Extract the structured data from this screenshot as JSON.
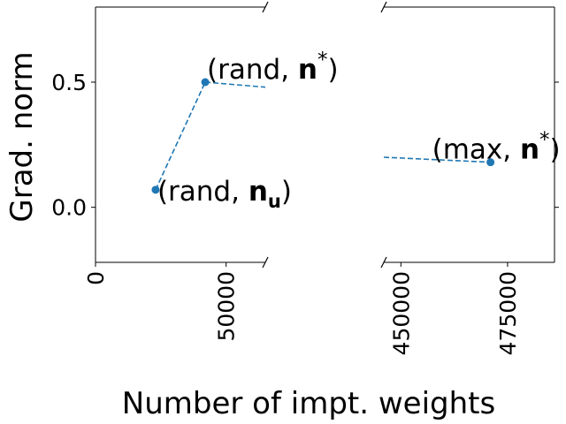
{
  "chart_data": {
    "type": "scatter",
    "broken_x_axis": true,
    "xlabel": "Number of impt. weights",
    "ylabel": "Grad. norm",
    "ylim": [
      -0.22,
      0.8
    ],
    "yticks": [
      0.0,
      0.5
    ],
    "ytick_labels": [
      "0.0",
      "0.5"
    ],
    "panels": [
      {
        "xlim": [
          0,
          65000
        ],
        "xticks": [
          0,
          50000
        ],
        "xtick_labels": [
          "0",
          "50000"
        ]
      },
      {
        "xlim": [
          446000,
          486000
        ],
        "xticks": [
          450000,
          475000
        ],
        "xtick_labels": [
          "450000",
          "475000"
        ]
      }
    ],
    "series": [
      {
        "color": "#1f77b4",
        "points": [
          {
            "x": 23000,
            "y": 0.07,
            "label_main": "(rand, ",
            "label_bold": "n",
            "label_sub": "u",
            "label_sup": "",
            "label_end": ")"
          },
          {
            "x": 42000,
            "y": 0.5,
            "label_main": "(rand, ",
            "label_bold": "n",
            "label_sub": "",
            "label_sup": "*",
            "label_end": ")"
          },
          {
            "x": 471000,
            "y": 0.18,
            "label_main": "(max, ",
            "label_bold": "n",
            "label_sub": "",
            "label_sup": "*",
            "label_end": ")"
          }
        ],
        "dashed_segments": [
          [
            {
              "x": 23000,
              "y": 0.07
            },
            {
              "x": 42000,
              "y": 0.5
            }
          ],
          [
            {
              "x": 42000,
              "y": 0.5
            },
            {
              "x": 65000,
              "y": 0.48
            }
          ],
          [
            {
              "x": 446000,
              "y": 0.2
            },
            {
              "x": 471000,
              "y": 0.18
            }
          ]
        ]
      }
    ]
  }
}
